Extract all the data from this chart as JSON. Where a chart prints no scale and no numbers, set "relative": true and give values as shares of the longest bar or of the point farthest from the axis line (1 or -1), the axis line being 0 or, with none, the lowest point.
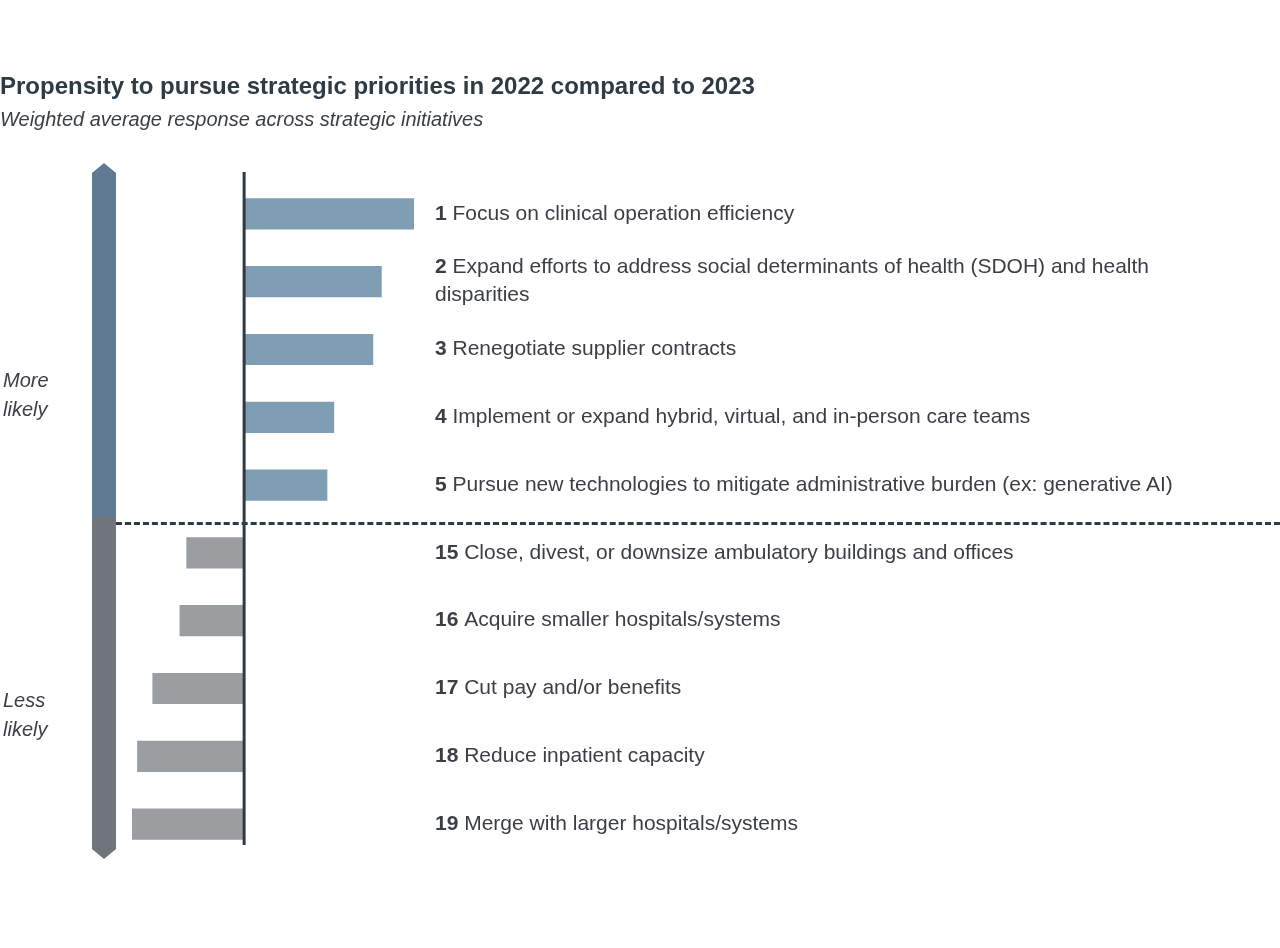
{
  "chart_data": {
    "type": "bar",
    "orientation": "horizontal",
    "relative": true,
    "title": "Propensity to pursue strategic priorities in 2022 compared to 2023",
    "subtitle": "Weighted average response across strategic initiatives",
    "categories": [
      "1 Focus on clinical operation efficiency",
      "2 Expand efforts to address social determinants of health (SDOH) and health disparities",
      "3 Renegotiate supplier contracts",
      "4 Implement or expand hybrid, virtual, and in-person care teams",
      "5 Pursue new technologies to mitigate administrative burden (ex: generative AI)",
      "15 Close, divest, or downsize ambulatory buildings and offices",
      "16 Acquire smaller hospitals/systems",
      "17 Cut pay and/or benefits",
      "18 Reduce inpatient capacity",
      "19 Merge with larger hospitals/systems"
    ],
    "values": [
      1,
      0.81,
      0.76,
      0.53,
      0.49,
      -0.34,
      -0.38,
      -0.54,
      -0.63,
      -0.66
    ],
    "colors": [
      "#7f9db3",
      "#7f9db3",
      "#7f9db3",
      "#7f9db3",
      "#7f9db3",
      "#9a9ea1",
      "#9a9ea1",
      "#9a9ea1",
      "#9a9ea1",
      "#9a9ea1"
    ],
    "annotations": [
      "More likely",
      "Less likely"
    ]
  }
}
